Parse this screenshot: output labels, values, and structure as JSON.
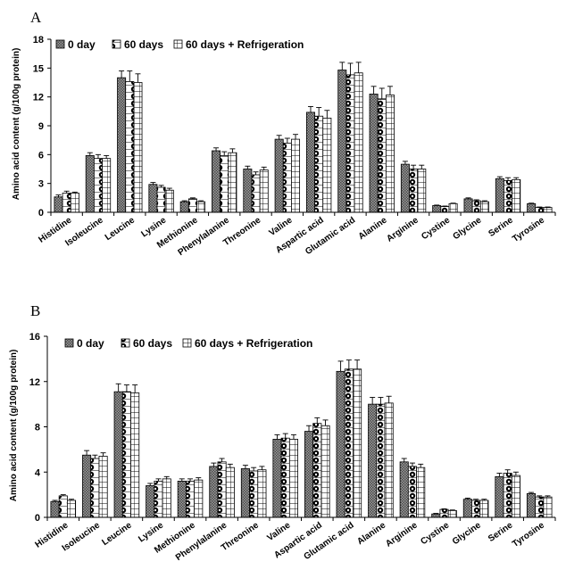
{
  "chart_data": [
    {
      "type": "bar",
      "panel_label": "A",
      "title": "",
      "xlabel": "",
      "ylabel": "Amino acid content (g/100g protein)",
      "ylim": [
        0,
        18
      ],
      "yticks": [
        0,
        3,
        6,
        9,
        12,
        15,
        18
      ],
      "legend_position": "top-left",
      "categories": [
        "Histidine",
        "Isoleucine",
        "Leucine",
        "Lysine",
        "Methionine",
        "Phenylalanine",
        "Threonine",
        "Valine",
        "Aspartic acid",
        "Glutamic acid",
        "Alanine",
        "Arginine",
        "Cystine",
        "Glycine",
        "Serine",
        "Tyrosine"
      ],
      "series": [
        {
          "name": "0 day",
          "pattern": "crosshatch",
          "values": [
            1.6,
            5.9,
            14.0,
            2.9,
            1.1,
            6.4,
            4.5,
            7.6,
            10.4,
            14.8,
            12.3,
            5.0,
            0.7,
            1.4,
            3.5,
            0.9
          ],
          "errors": [
            0.2,
            0.3,
            0.7,
            0.2,
            0.1,
            0.3,
            0.3,
            0.4,
            0.6,
            0.8,
            0.8,
            0.3,
            0.05,
            0.1,
            0.2,
            0.05
          ]
        },
        {
          "name": "60 days",
          "pattern": "dots",
          "values": [
            2.0,
            5.6,
            13.6,
            2.6,
            1.4,
            5.9,
            3.9,
            7.2,
            10.0,
            14.3,
            11.8,
            4.5,
            0.6,
            1.2,
            3.3,
            0.5
          ],
          "errors": [
            0.2,
            0.4,
            1.1,
            0.2,
            0.1,
            0.4,
            0.3,
            0.5,
            0.9,
            1.2,
            1.1,
            0.4,
            0.05,
            0.1,
            0.3,
            0.05
          ]
        },
        {
          "name": "60 days + Refrigeration",
          "pattern": "grid",
          "values": [
            2.0,
            5.6,
            13.5,
            2.3,
            1.1,
            6.2,
            4.4,
            7.6,
            9.8,
            14.5,
            12.2,
            4.5,
            0.9,
            1.1,
            3.4,
            0.5
          ],
          "errors": [
            0.1,
            0.3,
            0.9,
            0.2,
            0.1,
            0.4,
            0.3,
            0.5,
            0.8,
            1.1,
            0.9,
            0.4,
            0.05,
            0.1,
            0.2,
            0.05
          ]
        }
      ]
    },
    {
      "type": "bar",
      "panel_label": "B",
      "title": "",
      "xlabel": "",
      "ylabel": "Amino acid content (g/100g protein)",
      "ylim": [
        0,
        16
      ],
      "yticks": [
        0,
        4,
        8,
        12,
        16
      ],
      "legend_position": "top-left",
      "categories": [
        "Histidine",
        "Isoleucine",
        "Leucine",
        "Lysine",
        "Methionine",
        "Phenylalanine",
        "Threonine",
        "Valine",
        "Aspartic acid",
        "Glutamic acid",
        "Alanine",
        "Arginine",
        "Cystine",
        "Glycine",
        "Serine",
        "Tyrosine"
      ],
      "series": [
        {
          "name": "0 day",
          "pattern": "crosshatch",
          "values": [
            1.4,
            5.5,
            11.1,
            2.8,
            3.2,
            4.5,
            4.3,
            6.9,
            7.6,
            12.9,
            10.0,
            4.9,
            0.3,
            1.6,
            3.6,
            2.1
          ],
          "errors": [
            0.1,
            0.4,
            0.7,
            0.2,
            0.2,
            0.3,
            0.3,
            0.4,
            0.5,
            0.9,
            0.6,
            0.3,
            0.05,
            0.1,
            0.3,
            0.1
          ]
        },
        {
          "name": "60 days",
          "pattern": "dots",
          "values": [
            1.9,
            5.2,
            11.1,
            3.2,
            3.2,
            4.9,
            4.1,
            7.0,
            8.3,
            13.1,
            10.0,
            4.5,
            0.7,
            1.5,
            3.9,
            1.8
          ],
          "errors": [
            0.1,
            0.3,
            0.6,
            0.2,
            0.2,
            0.3,
            0.3,
            0.4,
            0.5,
            0.8,
            0.6,
            0.3,
            0.05,
            0.1,
            0.3,
            0.1
          ]
        },
        {
          "name": "60 days + Refrigeration",
          "pattern": "grid",
          "values": [
            1.5,
            5.4,
            11.0,
            3.4,
            3.3,
            4.4,
            4.2,
            6.9,
            8.1,
            13.1,
            10.1,
            4.4,
            0.6,
            1.5,
            3.7,
            1.8
          ],
          "errors": [
            0.1,
            0.3,
            0.7,
            0.2,
            0.2,
            0.3,
            0.3,
            0.4,
            0.5,
            0.8,
            0.6,
            0.3,
            0.05,
            0.1,
            0.3,
            0.1
          ]
        }
      ]
    }
  ]
}
